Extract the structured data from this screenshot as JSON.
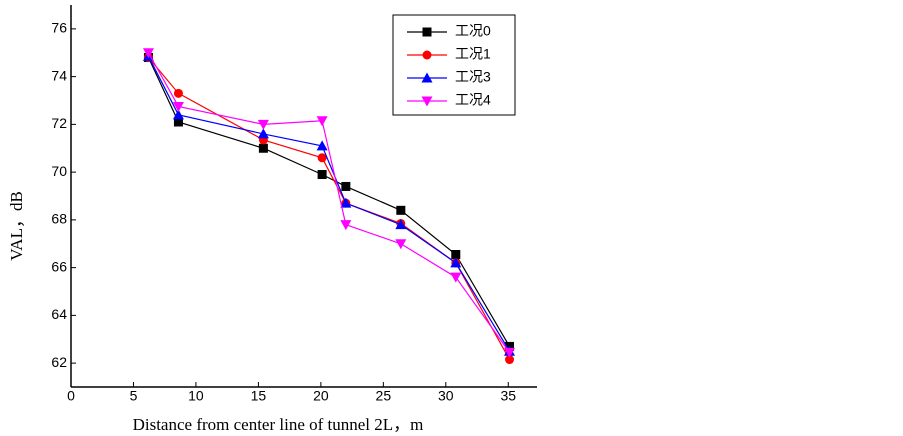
{
  "chart_data": {
    "type": "line",
    "x_label": "Distance from center line of tunnel 2L，m",
    "y_label": "VAL，dB",
    "x": [
      6.2,
      8.6,
      15.4,
      20.1,
      22.0,
      26.4,
      30.8,
      35.1
    ],
    "series": [
      {
        "name": "工况0",
        "color": "#000000",
        "marker": "square",
        "values": [
          74.8,
          72.1,
          71.0,
          69.9,
          69.4,
          68.4,
          66.55,
          62.7
        ]
      },
      {
        "name": "工况1",
        "color": "#ff0000",
        "marker": "circle",
        "values": [
          74.8,
          73.3,
          71.35,
          70.6,
          68.7,
          67.85,
          66.2,
          62.15
        ]
      },
      {
        "name": "工况3",
        "color": "#0000ff",
        "marker": "triangle-up",
        "values": [
          74.85,
          72.4,
          71.6,
          71.1,
          68.7,
          67.8,
          66.2,
          62.5
        ]
      },
      {
        "name": "工况4",
        "color": "#ff00ff",
        "marker": "triangle-down",
        "values": [
          75.0,
          72.75,
          72.0,
          72.15,
          67.8,
          67.0,
          65.6,
          62.45
        ]
      }
    ],
    "xlim": [
      0,
      37.3
    ],
    "ylim": [
      61,
      77
    ],
    "xticks": [
      0,
      5,
      10,
      15,
      20,
      25,
      30,
      35
    ],
    "yticks": [
      62,
      64,
      66,
      68,
      70,
      72,
      74,
      76
    ],
    "grid": false,
    "legend": "upper right"
  }
}
